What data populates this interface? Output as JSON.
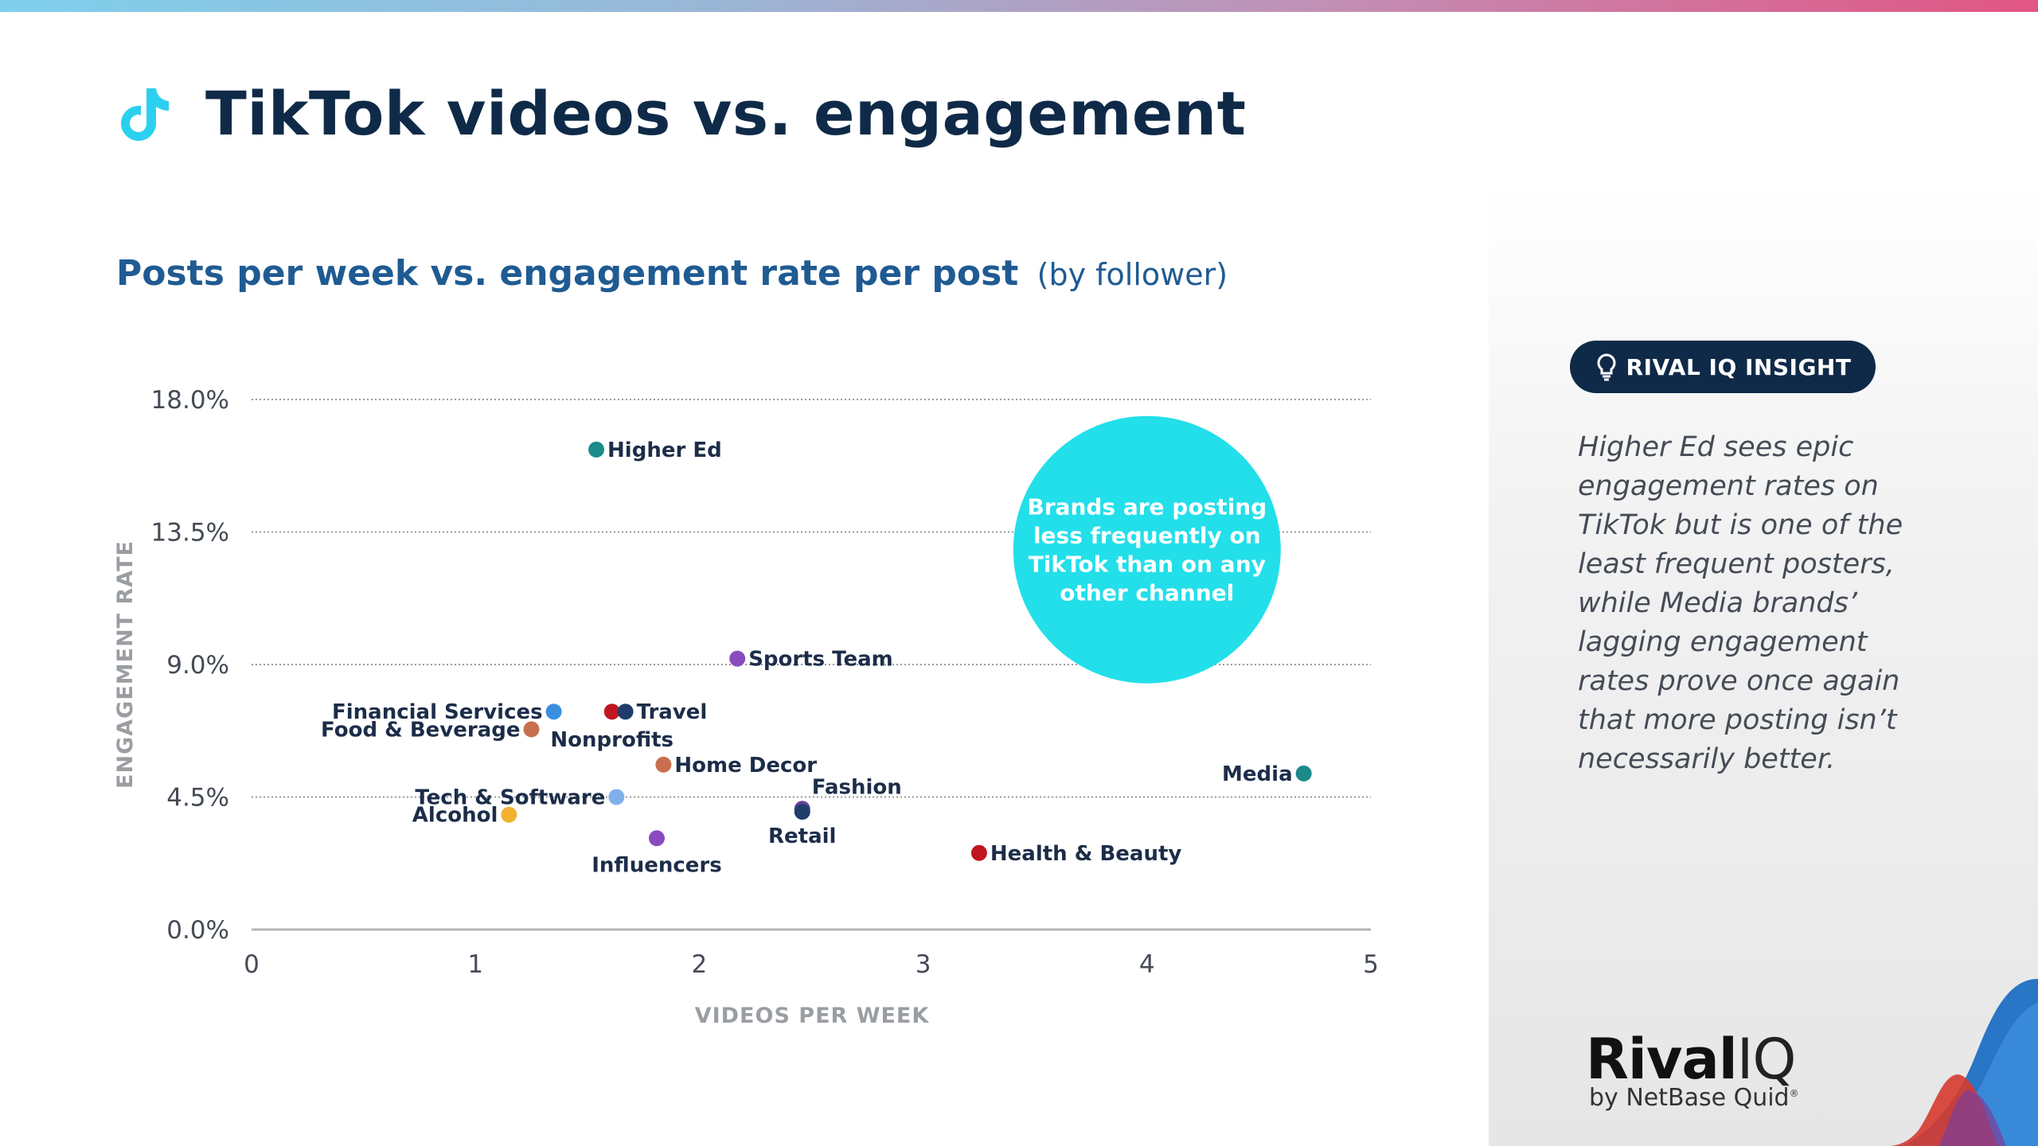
{
  "header": {
    "title": "TikTok videos vs. engagement"
  },
  "chart_data": {
    "type": "scatter",
    "title": "Posts per week vs. engagement rate per post",
    "subtitle_muted": "(by follower)",
    "xlabel": "VIDEOS PER WEEK",
    "ylabel": "ENGAGEMENT RATE",
    "xlim": [
      0,
      5
    ],
    "ylim": [
      0,
      18
    ],
    "x_ticks": [
      "0",
      "1",
      "2",
      "3",
      "4",
      "5"
    ],
    "y_ticks": [
      "0.0%",
      "4.5%",
      "9.0%",
      "13.5%",
      "18.0%"
    ],
    "grid": "horizontal dotted",
    "points": [
      {
        "label": "Higher Ed",
        "x": 1.54,
        "y": 16.3,
        "color": "#1a8a8a"
      },
      {
        "label": "Sports Team",
        "x": 2.17,
        "y": 9.2,
        "color": "#8a4bbf"
      },
      {
        "label": "Financial Services",
        "x": 1.35,
        "y": 7.4,
        "color": "#3b8fe0"
      },
      {
        "label": "Food & Beverage",
        "x": 1.25,
        "y": 6.8,
        "color": "#c8704e"
      },
      {
        "label": "Nonprofits",
        "x": 1.61,
        "y": 7.4,
        "color": "#c0161f"
      },
      {
        "label": "Travel",
        "x": 1.67,
        "y": 7.4,
        "color": "#1f3d6b"
      },
      {
        "label": "Home Decor",
        "x": 1.84,
        "y": 5.6,
        "color": "#c8704e"
      },
      {
        "label": "Tech & Software",
        "x": 1.63,
        "y": 4.5,
        "color": "#7fb0ea"
      },
      {
        "label": "Alcohol",
        "x": 1.15,
        "y": 3.9,
        "color": "#f2b230"
      },
      {
        "label": "Influencers",
        "x": 1.81,
        "y": 3.1,
        "color": "#8a4bbf"
      },
      {
        "label": "Fashion",
        "x": 2.46,
        "y": 4.1,
        "color": "#6b3fa0"
      },
      {
        "label": "Retail",
        "x": 2.46,
        "y": 4.0,
        "color": "#1f3d6b"
      },
      {
        "label": "Health & Beauty",
        "x": 3.25,
        "y": 2.6,
        "color": "#c0161f"
      },
      {
        "label": "Media",
        "x": 4.7,
        "y": 5.3,
        "color": "#1a8a8a"
      }
    ],
    "annotation": {
      "text_lines": [
        "Brands are posting",
        "less frequently on",
        "TikTok than on any",
        "other channel"
      ],
      "color": "#22dfea"
    }
  },
  "insight": {
    "badge": "RIVAL IQ INSIGHT",
    "text": "Higher Ed sees epic engagement rates on TikTok but is one of the least frequent posters, while Media brands’ lagging engagement rates prove once again that more posting isn’t necessarily better."
  },
  "brand": {
    "name_main": "Rival",
    "name_iq": "IQ",
    "byline": "by NetBase Quid",
    "registered": "®"
  },
  "colors": {
    "title": "#0f2a48",
    "subtitle": "#1f5b92",
    "accent_cyan": "#22dfea",
    "tiktok_cyan": "#2bd0f0"
  }
}
